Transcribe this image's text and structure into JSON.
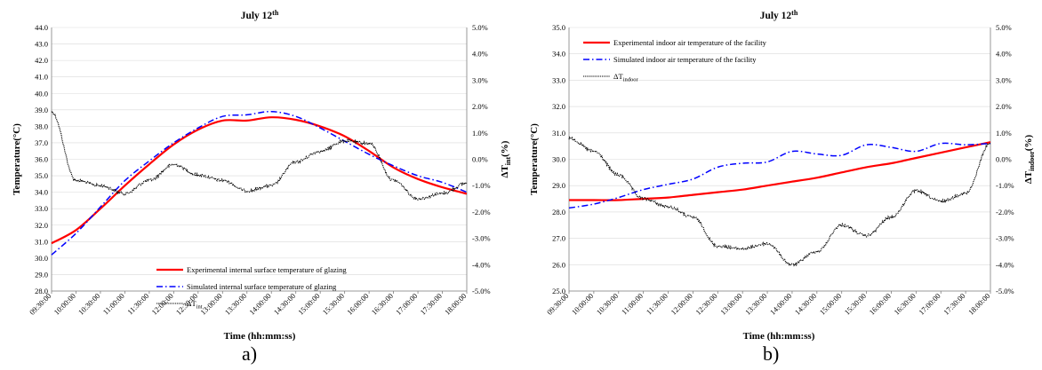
{
  "chart_data": [
    {
      "type": "line",
      "title": "July 12",
      "title_sup": "th",
      "panel_label": "a)",
      "xlabel": "Time (hh:mm:ss)",
      "ylabel": "Temperature(°C)",
      "ylabel2_main": "ΔT",
      "ylabel2_sub": "int",
      "ylabel2_unit": "(%)",
      "ylim": [
        28.0,
        44.0
      ],
      "y2lim": [
        -5.0,
        5.0
      ],
      "yticks": [
        "28.0",
        "29.0",
        "30.0",
        "31.0",
        "32.0",
        "33.0",
        "34.0",
        "35.0",
        "36.0",
        "37.0",
        "38.0",
        "39.0",
        "40.0",
        "41.0",
        "42.0",
        "43.0",
        "44.0"
      ],
      "y2ticks": [
        "-5.0%",
        "-4.0%",
        "-3.0%",
        "-2.0%",
        "-1.0%",
        "0.0%",
        "1.0%",
        "2.0%",
        "3.0%",
        "4.0%",
        "5.0%"
      ],
      "xticks": [
        "09:30:00",
        "10:00:00",
        "10:30:00",
        "11:00:00",
        "11:30:00",
        "12:00:00",
        "12:30:00",
        "13:00:00",
        "13:30:00",
        "14:00:00",
        "14:30:00",
        "15:00:00",
        "15:30:00",
        "16:00:00",
        "16:30:00",
        "17:00:00",
        "17:30:00",
        "18:00:00"
      ],
      "legend": {
        "position": "bottom-center",
        "items": [
          {
            "label": "Experimental internal surface temperature of glazing",
            "style": "solid",
            "color": "#ff0000"
          },
          {
            "label": "Simulated internal surface temperature of glazing",
            "style": "dashdot",
            "color": "#0000ff"
          },
          {
            "label_main": "ΔT",
            "label_sub": "int",
            "style": "dotted",
            "color": "#000000"
          }
        ]
      },
      "x_hours": [
        9.5,
        10,
        10.5,
        11,
        11.5,
        12,
        12.5,
        13,
        13.5,
        14,
        14.5,
        15,
        15.5,
        16,
        16.5,
        17,
        17.5,
        18
      ],
      "series": [
        {
          "name": "Experimental internal surface temperature of glazing",
          "axis": "left",
          "color": "#ff0000",
          "style": "solid",
          "values": [
            30.9,
            31.7,
            33.0,
            34.4,
            35.7,
            36.9,
            37.8,
            38.35,
            38.35,
            38.55,
            38.4,
            38.0,
            37.4,
            36.5,
            35.5,
            34.8,
            34.3,
            33.9
          ]
        },
        {
          "name": "Simulated internal surface temperature of glazing",
          "axis": "left",
          "color": "#0000ff",
          "style": "dashdot",
          "values": [
            30.2,
            31.5,
            33.1,
            34.7,
            35.9,
            37.0,
            37.9,
            38.6,
            38.7,
            38.9,
            38.6,
            37.9,
            37.1,
            36.3,
            35.6,
            35.0,
            34.6,
            34.0
          ]
        },
        {
          "name": "ΔT int",
          "axis": "right",
          "color": "#000000",
          "style": "dotted",
          "values": [
            1.8,
            -0.8,
            -1.0,
            -1.3,
            -0.8,
            -0.2,
            -0.6,
            -0.8,
            -1.2,
            -1.0,
            -0.1,
            0.3,
            0.7,
            0.6,
            -0.8,
            -1.5,
            -1.3,
            -0.9
          ]
        }
      ]
    },
    {
      "type": "line",
      "title": "July 12",
      "title_sup": "th",
      "panel_label": "b)",
      "xlabel": "Time (hh:mm:ss)",
      "ylabel": "Temperature(°C)",
      "ylabel2_main": "ΔT",
      "ylabel2_sub": "indoor",
      "ylabel2_unit": "(%)",
      "ylim": [
        25.0,
        35.0
      ],
      "y2lim": [
        -5.0,
        5.0
      ],
      "yticks": [
        "25.0",
        "26.0",
        "27.0",
        "28.0",
        "29.0",
        "30.0",
        "31.0",
        "32.0",
        "33.0",
        "34.0",
        "35.0"
      ],
      "y2ticks": [
        "-5.0%",
        "-4.0%",
        "-3.0%",
        "-2.0%",
        "-1.0%",
        "0.0%",
        "1.0%",
        "2.0%",
        "3.0%",
        "4.0%",
        "5.0%"
      ],
      "xticks": [
        "09:30:00",
        "10:00:00",
        "10:30:00",
        "11:00:00",
        "11:30:00",
        "12:00:00",
        "12:30:00",
        "13:00:00",
        "13:30:00",
        "14:00:00",
        "14:30:00",
        "15:00:00",
        "15:30:00",
        "16:00:00",
        "16:30:00",
        "17:00:00",
        "17:30:00",
        "18:00:00"
      ],
      "legend": {
        "position": "top-left",
        "items": [
          {
            "label": "Experimental indoor air temperature of the facility",
            "style": "solid",
            "color": "#ff0000"
          },
          {
            "label": "Simulated indoor air temperature of the facility",
            "style": "dashdot",
            "color": "#0000ff"
          },
          {
            "label_main": "ΔT",
            "label_sub": "indoor",
            "style": "dotted",
            "color": "#000000"
          }
        ]
      },
      "x_hours": [
        9.5,
        10,
        10.5,
        11,
        11.5,
        12,
        12.5,
        13,
        13.5,
        14,
        14.5,
        15,
        15.5,
        16,
        16.5,
        17,
        17.5,
        18
      ],
      "series": [
        {
          "name": "Experimental indoor air temperature of the facility",
          "axis": "left",
          "color": "#ff0000",
          "style": "solid",
          "values": [
            28.45,
            28.45,
            28.45,
            28.5,
            28.55,
            28.65,
            28.75,
            28.85,
            29.0,
            29.15,
            29.3,
            29.5,
            29.7,
            29.85,
            30.05,
            30.25,
            30.45,
            30.65
          ]
        },
        {
          "name": "Simulated indoor air temperature of the facility",
          "axis": "left",
          "color": "#0000ff",
          "style": "dashdot",
          "values": [
            28.15,
            28.3,
            28.55,
            28.85,
            29.05,
            29.25,
            29.7,
            29.85,
            29.9,
            30.3,
            30.2,
            30.15,
            30.55,
            30.45,
            30.3,
            30.6,
            30.55,
            30.6
          ]
        },
        {
          "name": "ΔT indoor",
          "axis": "right",
          "color": "#000000",
          "style": "dotted",
          "values": [
            0.8,
            0.3,
            -0.6,
            -1.5,
            -1.8,
            -2.2,
            -3.3,
            -3.4,
            -3.2,
            -4.0,
            -3.5,
            -2.5,
            -2.9,
            -2.2,
            -1.2,
            -1.6,
            -1.3,
            0.6
          ]
        }
      ]
    }
  ]
}
